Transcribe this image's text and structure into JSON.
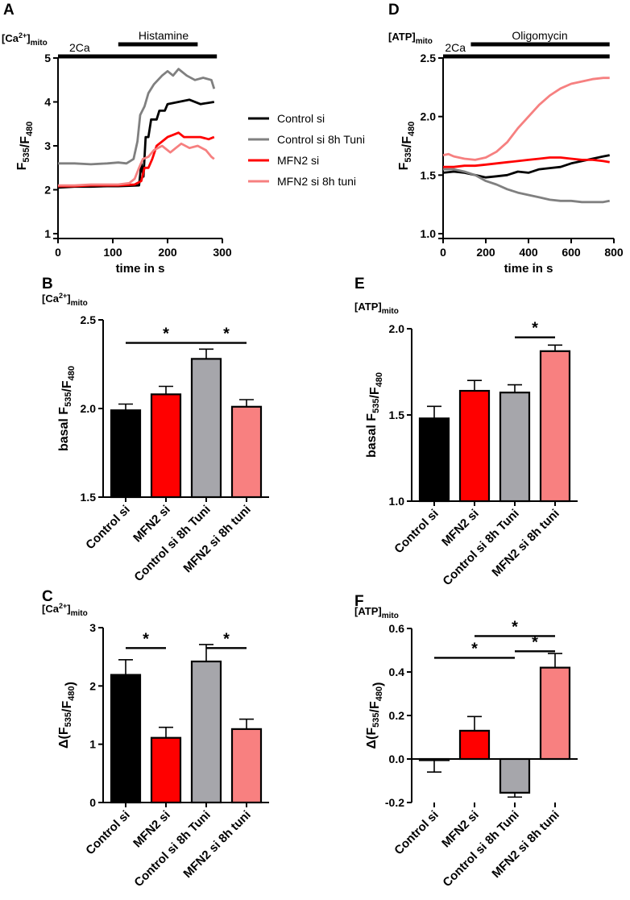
{
  "chart_data": [
    {
      "panel": "A",
      "type": "line",
      "header": "[Ca2+]mito",
      "ylabel": "F535/F480",
      "xlabel": "time in s",
      "xlim": [
        0,
        300
      ],
      "ylim": [
        1,
        5
      ],
      "xticks": [
        0,
        100,
        200,
        300
      ],
      "yticks": [
        1,
        2,
        3,
        4,
        5
      ],
      "treatments": [
        {
          "label": "2Ca",
          "start": 0,
          "end": 290
        },
        {
          "label": "Histamine",
          "start": 110,
          "end": 255
        }
      ],
      "series": [
        {
          "name": "Control si",
          "color": "#000000",
          "points": [
            [
              0,
              2.05
            ],
            [
              30,
              2.07
            ],
            [
              60,
              2.07
            ],
            [
              90,
              2.08
            ],
            [
              110,
              2.08
            ],
            [
              130,
              2.09
            ],
            [
              148,
              2.1
            ],
            [
              152,
              2.6
            ],
            [
              156,
              2.3
            ],
            [
              160,
              3.2
            ],
            [
              165,
              3.2
            ],
            [
              170,
              3.6
            ],
            [
              180,
              3.6
            ],
            [
              185,
              3.8
            ],
            [
              195,
              3.8
            ],
            [
              200,
              3.95
            ],
            [
              220,
              4.0
            ],
            [
              240,
              4.05
            ],
            [
              260,
              3.95
            ],
            [
              275,
              3.98
            ],
            [
              285,
              4.0
            ]
          ]
        },
        {
          "name": "Control si 8h Tuni",
          "color": "#808080",
          "points": [
            [
              0,
              2.6
            ],
            [
              30,
              2.6
            ],
            [
              60,
              2.58
            ],
            [
              90,
              2.6
            ],
            [
              110,
              2.62
            ],
            [
              125,
              2.6
            ],
            [
              138,
              2.7
            ],
            [
              145,
              3.1
            ],
            [
              150,
              3.7
            ],
            [
              158,
              3.9
            ],
            [
              165,
              4.2
            ],
            [
              175,
              4.4
            ],
            [
              190,
              4.6
            ],
            [
              200,
              4.7
            ],
            [
              210,
              4.6
            ],
            [
              220,
              4.75
            ],
            [
              235,
              4.6
            ],
            [
              250,
              4.5
            ],
            [
              265,
              4.55
            ],
            [
              280,
              4.5
            ],
            [
              285,
              4.3
            ]
          ]
        },
        {
          "name": "MFN2 si",
          "color": "#ff0000",
          "points": [
            [
              0,
              2.08
            ],
            [
              30,
              2.08
            ],
            [
              60,
              2.1
            ],
            [
              90,
              2.1
            ],
            [
              110,
              2.1
            ],
            [
              140,
              2.12
            ],
            [
              152,
              2.2
            ],
            [
              158,
              2.5
            ],
            [
              165,
              2.5
            ],
            [
              172,
              2.7
            ],
            [
              180,
              3.0
            ],
            [
              190,
              3.1
            ],
            [
              200,
              3.2
            ],
            [
              210,
              3.25
            ],
            [
              220,
              3.3
            ],
            [
              230,
              3.2
            ],
            [
              245,
              3.2
            ],
            [
              260,
              3.2
            ],
            [
              275,
              3.15
            ],
            [
              285,
              3.2
            ]
          ]
        },
        {
          "name": "MFN2 si 8h tuni",
          "color": "#f68080",
          "points": [
            [
              0,
              2.1
            ],
            [
              30,
              2.1
            ],
            [
              60,
              2.12
            ],
            [
              90,
              2.12
            ],
            [
              110,
              2.12
            ],
            [
              130,
              2.15
            ],
            [
              140,
              2.25
            ],
            [
              148,
              2.5
            ],
            [
              155,
              2.7
            ],
            [
              165,
              2.75
            ],
            [
              175,
              2.9
            ],
            [
              190,
              3.0
            ],
            [
              205,
              2.85
            ],
            [
              215,
              2.95
            ],
            [
              225,
              3.05
            ],
            [
              240,
              2.95
            ],
            [
              255,
              3.0
            ],
            [
              270,
              2.9
            ],
            [
              280,
              2.75
            ],
            [
              285,
              2.7
            ]
          ]
        }
      ],
      "legend": [
        "Control si",
        "Control si 8h Tuni",
        "MFN2 si",
        "MFN2 si 8h tuni"
      ]
    },
    {
      "panel": "D",
      "type": "line",
      "header": "[ATP]mito",
      "ylabel": "F535/F480",
      "xlabel": "time in s",
      "xlim": [
        0,
        800
      ],
      "ylim": [
        1.0,
        2.5
      ],
      "xticks": [
        0,
        200,
        400,
        600,
        800
      ],
      "yticks": [
        "1.0",
        "1.5",
        "2.0",
        "2.5"
      ],
      "treatments": [
        {
          "label": "2Ca",
          "start": 0,
          "end": 780
        },
        {
          "label": "Oligomycin",
          "start": 130,
          "end": 780
        }
      ],
      "series": [
        {
          "name": "Control si",
          "color": "#000000",
          "points": [
            [
              0,
              1.52
            ],
            [
              50,
              1.53
            ],
            [
              100,
              1.52
            ],
            [
              150,
              1.5
            ],
            [
              200,
              1.48
            ],
            [
              250,
              1.49
            ],
            [
              300,
              1.5
            ],
            [
              350,
              1.53
            ],
            [
              400,
              1.52
            ],
            [
              450,
              1.55
            ],
            [
              500,
              1.56
            ],
            [
              550,
              1.57
            ],
            [
              600,
              1.6
            ],
            [
              650,
              1.62
            ],
            [
              700,
              1.64
            ],
            [
              750,
              1.66
            ],
            [
              780,
              1.67
            ]
          ]
        },
        {
          "name": "Control si 8h Tuni",
          "color": "#808080",
          "points": [
            [
              0,
              1.55
            ],
            [
              50,
              1.55
            ],
            [
              100,
              1.53
            ],
            [
              150,
              1.5
            ],
            [
              200,
              1.45
            ],
            [
              250,
              1.42
            ],
            [
              300,
              1.38
            ],
            [
              350,
              1.35
            ],
            [
              400,
              1.33
            ],
            [
              450,
              1.31
            ],
            [
              500,
              1.29
            ],
            [
              550,
              1.28
            ],
            [
              600,
              1.28
            ],
            [
              650,
              1.27
            ],
            [
              700,
              1.27
            ],
            [
              750,
              1.27
            ],
            [
              780,
              1.28
            ]
          ]
        },
        {
          "name": "MFN2 si",
          "color": "#ff0000",
          "points": [
            [
              0,
              1.57
            ],
            [
              50,
              1.57
            ],
            [
              100,
              1.58
            ],
            [
              150,
              1.58
            ],
            [
              200,
              1.59
            ],
            [
              250,
              1.6
            ],
            [
              300,
              1.61
            ],
            [
              350,
              1.62
            ],
            [
              400,
              1.63
            ],
            [
              450,
              1.64
            ],
            [
              500,
              1.65
            ],
            [
              550,
              1.65
            ],
            [
              600,
              1.64
            ],
            [
              650,
              1.63
            ],
            [
              700,
              1.63
            ],
            [
              750,
              1.62
            ],
            [
              780,
              1.61
            ]
          ]
        },
        {
          "name": "MFN2 si 8h tuni",
          "color": "#f68080",
          "points": [
            [
              0,
              1.67
            ],
            [
              25,
              1.68
            ],
            [
              50,
              1.66
            ],
            [
              100,
              1.64
            ],
            [
              150,
              1.63
            ],
            [
              200,
              1.65
            ],
            [
              250,
              1.7
            ],
            [
              300,
              1.78
            ],
            [
              350,
              1.9
            ],
            [
              400,
              2.0
            ],
            [
              450,
              2.1
            ],
            [
              500,
              2.18
            ],
            [
              550,
              2.24
            ],
            [
              600,
              2.28
            ],
            [
              650,
              2.3
            ],
            [
              700,
              2.32
            ],
            [
              750,
              2.33
            ],
            [
              780,
              2.33
            ]
          ]
        }
      ]
    },
    {
      "panel": "B",
      "type": "bar",
      "header": "[Ca2+]mito",
      "ylabel": "basal F535/F480",
      "ylim": [
        1.5,
        2.5
      ],
      "yticks": [
        "1.5",
        "2.0",
        "2.5"
      ],
      "categories": [
        "Control si",
        "MFN2 si",
        "Control si 8h Tuni",
        "MFN2 si 8h tuni"
      ],
      "values": [
        1.99,
        2.08,
        2.28,
        2.01
      ],
      "errors": [
        0.035,
        0.045,
        0.055,
        0.04
      ],
      "colors": [
        "#000000",
        "#ff0000",
        "#a6a6ab",
        "#f88080"
      ],
      "significance": [
        {
          "from": 0,
          "to": 2,
          "label": "*",
          "level": 2.37
        },
        {
          "from": 2,
          "to": 3,
          "label": "*",
          "level": 2.37
        }
      ]
    },
    {
      "panel": "E",
      "type": "bar",
      "header": "[ATP]mito",
      "ylabel": "basal F535/F480",
      "ylim": [
        1.0,
        2.0
      ],
      "yticks": [
        "1.0",
        "1.5",
        "2.0"
      ],
      "categories": [
        "Control si",
        "MFN2 si",
        "Control si 8h Tuni",
        "MFN2 si 8h tuni"
      ],
      "values": [
        1.48,
        1.64,
        1.63,
        1.87
      ],
      "errors": [
        0.07,
        0.06,
        0.045,
        0.035
      ],
      "colors": [
        "#000000",
        "#ff0000",
        "#a6a6ab",
        "#f88080"
      ],
      "significance": [
        {
          "from": 2,
          "to": 3,
          "label": "*",
          "level": 1.95
        }
      ]
    },
    {
      "panel": "C",
      "type": "bar",
      "header": "[Ca2+]mito",
      "ylabel": "Δ(F535/F480)",
      "ylim": [
        0,
        3
      ],
      "yticks": [
        "0",
        "1",
        "2",
        "3"
      ],
      "categories": [
        "Control si",
        "MFN2 si",
        "Control si 8h Tuni",
        "MFN2 si 8h tuni"
      ],
      "values": [
        2.19,
        1.11,
        2.42,
        1.26
      ],
      "errors": [
        0.26,
        0.18,
        0.29,
        0.17
      ],
      "colors": [
        "#000000",
        "#ff0000",
        "#a6a6ab",
        "#f88080"
      ],
      "significance": [
        {
          "from": 0,
          "to": 1,
          "label": "*",
          "level": 2.65
        },
        {
          "from": 2,
          "to": 3,
          "label": "*",
          "level": 2.65
        }
      ]
    },
    {
      "panel": "F",
      "type": "bar",
      "header": "[ATP]mito",
      "ylabel": "Δ(F535/F480)",
      "ylim": [
        -0.2,
        0.6
      ],
      "yticks": [
        "-0.2",
        "0.0",
        "0.2",
        "0.4",
        "0.6"
      ],
      "categories": [
        "Control si",
        "MFN2 si",
        "Control si 8h Tuni",
        "MFN2 si 8h tuni"
      ],
      "values": [
        -0.005,
        0.13,
        -0.155,
        0.42
      ],
      "errors": [
        0.055,
        0.065,
        0.02,
        0.065
      ],
      "colors": [
        "#000000",
        "#ff0000",
        "#a6a6ab",
        "#f88080"
      ],
      "significance": [
        {
          "from": 0,
          "to": 2,
          "label": "*",
          "level": 0.465
        },
        {
          "from": 2,
          "to": 3,
          "label": "*",
          "level": 0.495
        },
        {
          "from": 1,
          "to": 3,
          "label": "*",
          "level": 0.565
        }
      ]
    }
  ]
}
